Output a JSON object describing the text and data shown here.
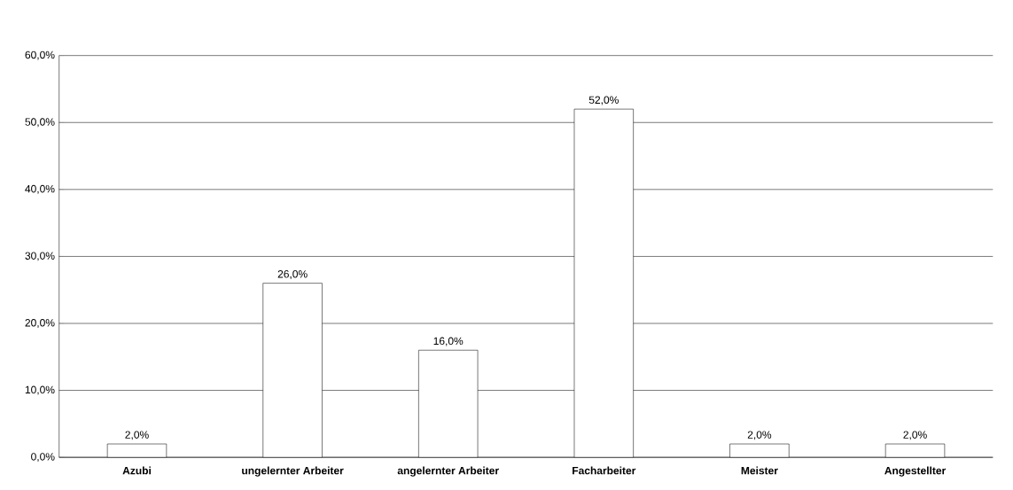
{
  "chart_data": {
    "type": "bar",
    "categories": [
      "Azubi",
      "ungelernter Arbeiter",
      "angelernter Arbeiter",
      "Facharbeiter",
      "Meister",
      "Angestellter"
    ],
    "values": [
      2,
      26,
      16,
      52,
      2,
      2
    ],
    "value_labels": [
      "2,0%",
      "26,0%",
      "16,0%",
      "52,0%",
      "2,0%",
      "2,0%"
    ],
    "color": "#ffffff",
    "ylim": [
      0,
      60
    ],
    "yticks": [
      {
        "value": 0,
        "label": "0,0%"
      },
      {
        "value": 10,
        "label": "10,0%"
      },
      {
        "value": 20,
        "label": "20,0%"
      },
      {
        "value": 30,
        "label": "30,0%"
      },
      {
        "value": 40,
        "label": "40,0%"
      },
      {
        "value": 50,
        "label": "50,0%"
      },
      {
        "value": 60,
        "label": "60,0%"
      }
    ],
    "grid": "y"
  }
}
